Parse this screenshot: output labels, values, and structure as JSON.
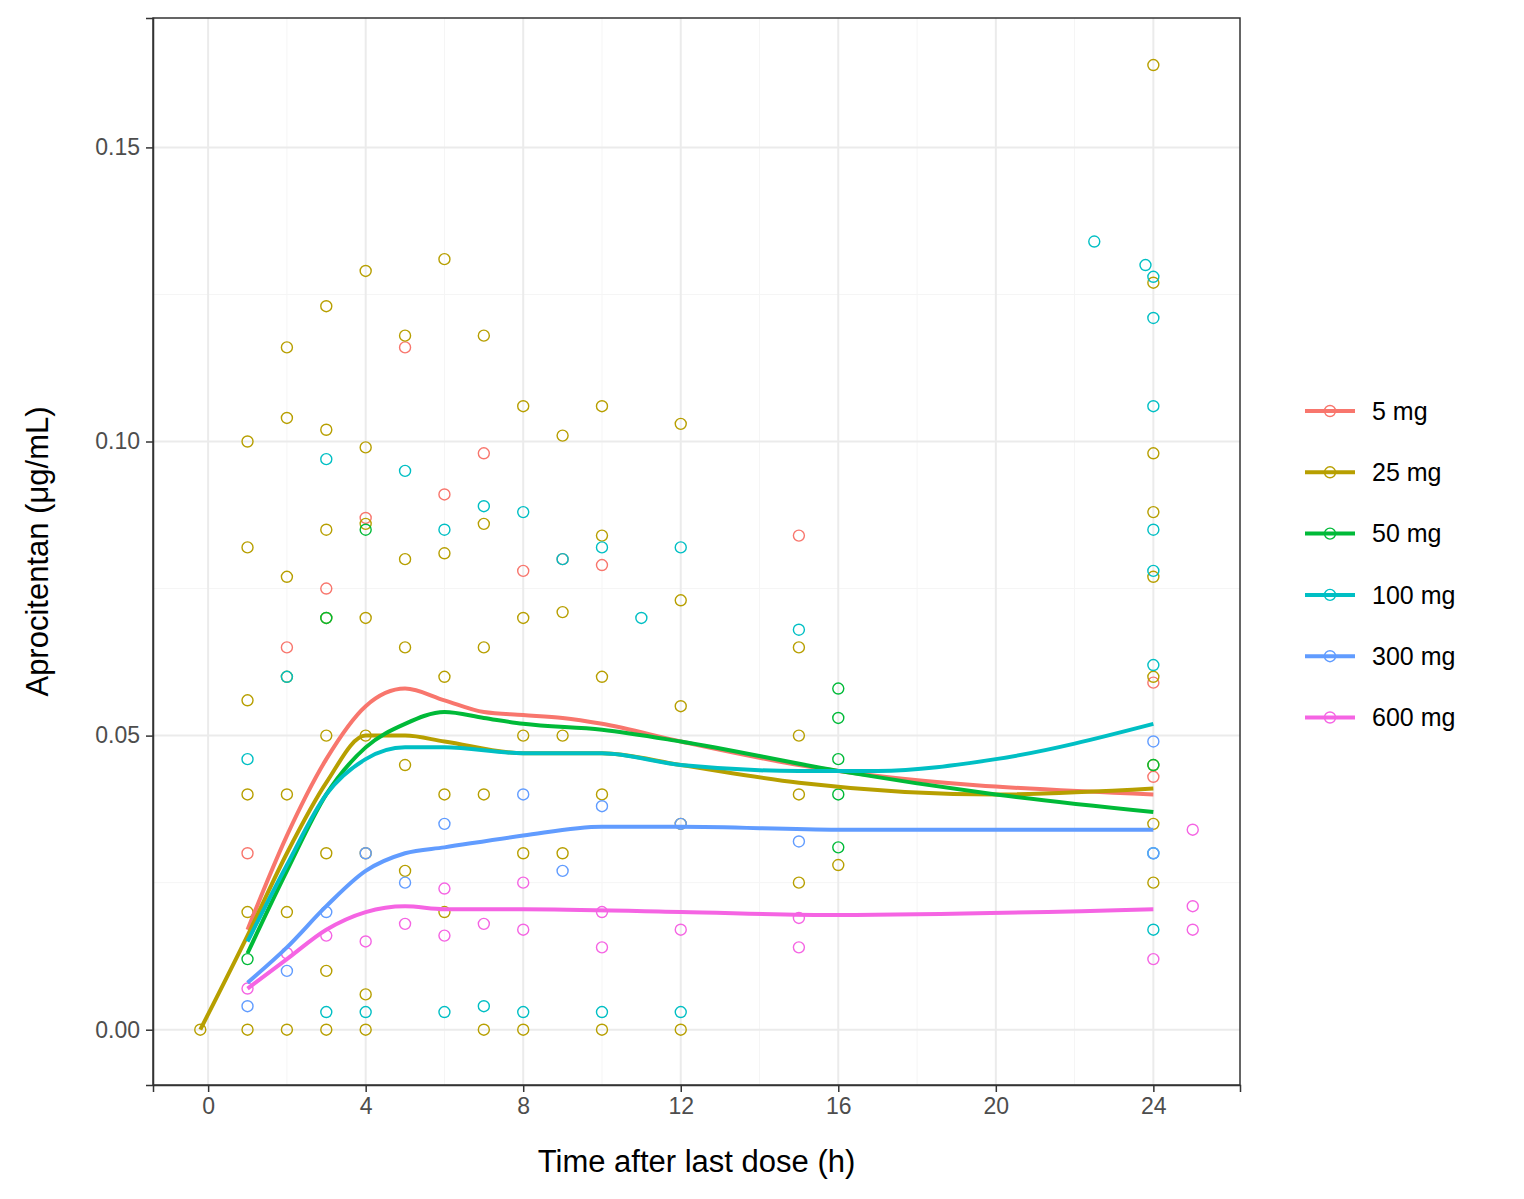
{
  "chart_data": {
    "type": "scatter",
    "x_label": "Time after last dose (h)",
    "y_label": "Aprocitentan (μg/mL)",
    "xlim": [
      -1.4,
      26.2
    ],
    "ylim": [
      -0.0094,
      0.172
    ],
    "xticks": [
      0,
      4,
      8,
      12,
      16,
      20,
      24
    ],
    "yticks": [
      {
        "value": 0,
        "label": "0.00"
      },
      {
        "value": 0.05,
        "label": "0.05"
      },
      {
        "value": 0.1,
        "label": "0.10"
      },
      {
        "value": 0.15,
        "label": "0.15"
      }
    ],
    "grid": true,
    "legend": "right",
    "marker": "circle",
    "series": [
      {
        "name": "5 mg",
        "color": "#F8766D",
        "x": [
          1,
          2,
          3,
          4,
          5,
          6,
          7,
          8,
          9,
          10,
          15,
          24,
          24
        ],
        "values": [
          0.03,
          0.065,
          0.075,
          0.087,
          0.116,
          0.091,
          0.098,
          0.078,
          0.08,
          0.079,
          0.084,
          0.059,
          0.043
        ],
        "fit": {
          "x": [
            1,
            2,
            3,
            4,
            5,
            6,
            7,
            8,
            9,
            10,
            12,
            15,
            24
          ],
          "values": [
            0.017,
            0.033,
            0.046,
            0.055,
            0.058,
            0.056,
            0.054,
            0.0535,
            0.053,
            0.052,
            0.049,
            0.045,
            0.04
          ]
        }
      },
      {
        "name": "25 mg",
        "color": "#B79F00",
        "x": [
          -0.2,
          1,
          1,
          1,
          1,
          1,
          1,
          2,
          2,
          2,
          2,
          2,
          2,
          2,
          3,
          3,
          3,
          3,
          3,
          3,
          3,
          3,
          4,
          4,
          4,
          4,
          4,
          4,
          4,
          4,
          5,
          5,
          5,
          5,
          5,
          6,
          6,
          6,
          6,
          6,
          7,
          7,
          7,
          7,
          7,
          8,
          8,
          8,
          8,
          8,
          9,
          9,
          9,
          9,
          10,
          10,
          10,
          10,
          10,
          12,
          12,
          12,
          12,
          12,
          15,
          15,
          15,
          15,
          16,
          24,
          24,
          24,
          24,
          24,
          24,
          24,
          24,
          24
        ],
        "values": [
          0,
          0.1,
          0.082,
          0.056,
          0.04,
          0.02,
          0,
          0.116,
          0.104,
          0.077,
          0.06,
          0.04,
          0.02,
          0,
          0.123,
          0.102,
          0.085,
          0.07,
          0.05,
          0.03,
          0.01,
          0,
          0.129,
          0.099,
          0.086,
          0.07,
          0.05,
          0.03,
          0.006,
          0,
          0.118,
          0.08,
          0.065,
          0.045,
          0.027,
          0.131,
          0.081,
          0.06,
          0.04,
          0.02,
          0.118,
          0.086,
          0.065,
          0.04,
          0,
          0.106,
          0.07,
          0.05,
          0.03,
          0,
          0.101,
          0.071,
          0.05,
          0.03,
          0.106,
          0.084,
          0.06,
          0.04,
          0,
          0.103,
          0.073,
          0.055,
          0.035,
          0,
          0.065,
          0.05,
          0.04,
          0.025,
          0.028,
          0.164,
          0.127,
          0.098,
          0.088,
          0.077,
          0.06,
          0.045,
          0.035,
          0.025
        ],
        "fit": {
          "x": [
            -0.2,
            1,
            2,
            3,
            4,
            5,
            6,
            8,
            10,
            12,
            15,
            20,
            24
          ],
          "values": [
            0,
            0.016,
            0.03,
            0.042,
            0.05,
            0.05,
            0.049,
            0.047,
            0.047,
            0.045,
            0.042,
            0.04,
            0.041
          ]
        }
      },
      {
        "name": "50 mg",
        "color": "#00BA38",
        "x": [
          1,
          3,
          4,
          16,
          16,
          16,
          16,
          16,
          24
        ],
        "values": [
          0.012,
          0.07,
          0.085,
          0.058,
          0.053,
          0.046,
          0.04,
          0.031,
          0.045
        ],
        "fit": {
          "x": [
            1,
            2,
            3,
            4,
            5,
            6,
            7,
            8,
            10,
            12,
            16,
            20,
            24
          ],
          "values": [
            0.013,
            0.027,
            0.04,
            0.048,
            0.052,
            0.054,
            0.053,
            0.052,
            0.051,
            0.049,
            0.044,
            0.04,
            0.037
          ]
        }
      },
      {
        "name": "100 mg",
        "color": "#00BFC4",
        "x": [
          1,
          2,
          3,
          3,
          4,
          5,
          6,
          6,
          7,
          7,
          8,
          8,
          9,
          10,
          10,
          11,
          12,
          12,
          15,
          22.5,
          23.8,
          24,
          24,
          24,
          24,
          24,
          24,
          24,
          24
        ],
        "values": [
          0.046,
          0.06,
          0.097,
          0.003,
          0.003,
          0.095,
          0.085,
          0.003,
          0.089,
          0.004,
          0.088,
          0.003,
          0.08,
          0.082,
          0.003,
          0.07,
          0.082,
          0.003,
          0.068,
          0.134,
          0.13,
          0.128,
          0.121,
          0.106,
          0.085,
          0.078,
          0.062,
          0.03,
          0.017
        ],
        "fit": {
          "x": [
            1,
            2,
            3,
            4,
            5,
            6,
            8,
            10,
            12,
            15,
            17,
            20,
            24
          ],
          "values": [
            0.015,
            0.028,
            0.04,
            0.046,
            0.048,
            0.048,
            0.047,
            0.047,
            0.045,
            0.044,
            0.044,
            0.046,
            0.052
          ]
        }
      },
      {
        "name": "300 mg",
        "color": "#619CFF",
        "x": [
          1,
          2,
          3,
          4,
          5,
          6,
          8,
          9,
          10,
          12,
          15,
          24,
          24
        ],
        "values": [
          0.004,
          0.01,
          0.02,
          0.03,
          0.025,
          0.035,
          0.04,
          0.027,
          0.038,
          0.035,
          0.032,
          0.049,
          0.03
        ],
        "fit": {
          "x": [
            1,
            2,
            3,
            4,
            5,
            6,
            8,
            10,
            12,
            16,
            24
          ],
          "values": [
            0.008,
            0.014,
            0.021,
            0.027,
            0.03,
            0.031,
            0.033,
            0.0345,
            0.0345,
            0.034,
            0.034
          ]
        }
      },
      {
        "name": "600 mg",
        "color": "#F564E3",
        "x": [
          1,
          2,
          3,
          4,
          5,
          6,
          6,
          7,
          8,
          8,
          10,
          10,
          12,
          15,
          15,
          24,
          25,
          25,
          25
        ],
        "values": [
          0.007,
          0.013,
          0.016,
          0.015,
          0.018,
          0.016,
          0.024,
          0.018,
          0.025,
          0.017,
          0.014,
          0.02,
          0.017,
          0.014,
          0.019,
          0.012,
          0.034,
          0.021,
          0.017
        ],
        "fit": {
          "x": [
            1,
            2,
            3,
            4,
            5,
            6,
            8,
            12,
            16,
            24
          ],
          "values": [
            0.007,
            0.012,
            0.017,
            0.02,
            0.021,
            0.0205,
            0.0205,
            0.02,
            0.0195,
            0.0205
          ]
        }
      }
    ]
  }
}
